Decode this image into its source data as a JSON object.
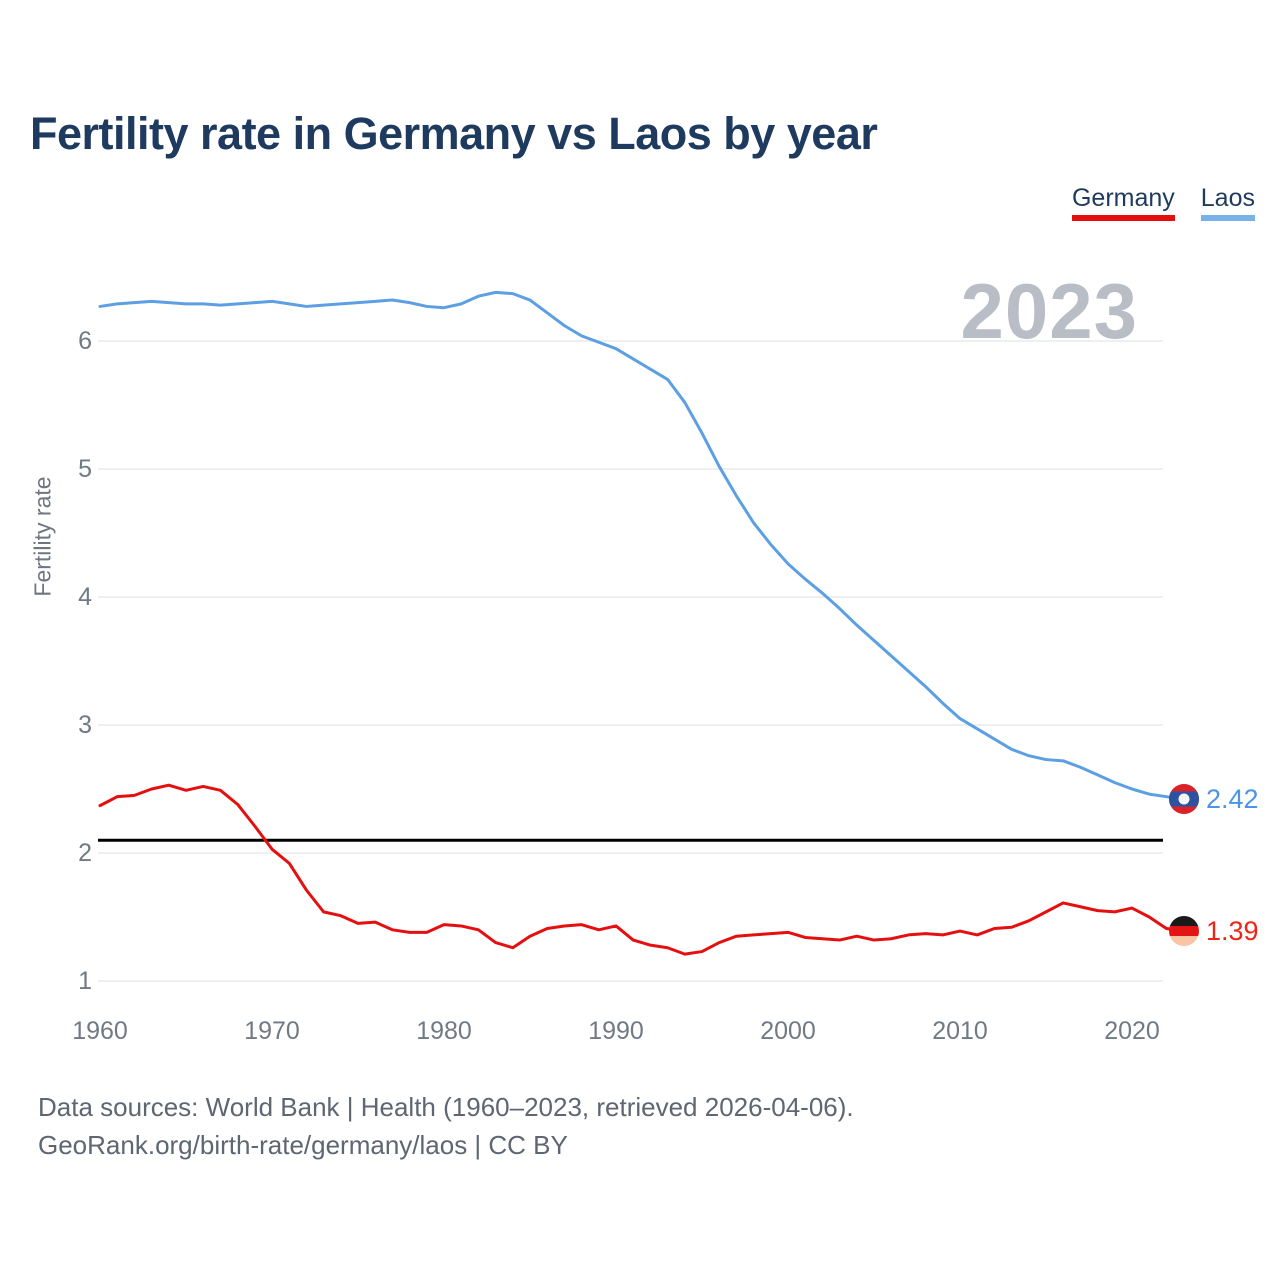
{
  "title": "Fertility rate in Germany vs Laos by year",
  "watermark": "2023",
  "legend": {
    "items": [
      {
        "label": "Germany",
        "color": "#e60f0f"
      },
      {
        "label": "Laos",
        "color": "#79b2e9"
      }
    ]
  },
  "y_axis": {
    "label": "Fertility rate",
    "ticks": [
      "1",
      "2",
      "3",
      "4",
      "5",
      "6"
    ]
  },
  "x_axis": {
    "ticks": [
      "1960",
      "1970",
      "1980",
      "1990",
      "2000",
      "2010",
      "2020"
    ]
  },
  "reference_line": {
    "value": 2.1,
    "color": "#000000"
  },
  "end_labels": {
    "laos": {
      "value": "2.42",
      "color": "#4b94e8"
    },
    "germany": {
      "value": "1.39",
      "color": "#ee2516"
    }
  },
  "flags": {
    "laos": {
      "red": "#d8232a",
      "blue": "#2d53a0",
      "white": "#f4f6f8"
    },
    "germany": {
      "black": "#1a1a1a",
      "red": "#e31414",
      "gold": "#f9c5a5"
    }
  },
  "footer": {
    "line1": "Data sources: World Bank | Health (1960–2023, retrieved 2026-04-06).",
    "line2": "GeoRank.org/birth-rate/germany/laos | CC BY"
  },
  "chart_data": {
    "type": "line",
    "title": "Fertility rate in Germany vs Laos by year",
    "xlabel": "",
    "ylabel": "Fertility rate",
    "xlim": [
      1960,
      2023
    ],
    "ylim": [
      1,
      6.5
    ],
    "grid": "horizontal",
    "legend_position": "top-right",
    "x": [
      1960,
      1961,
      1962,
      1963,
      1964,
      1965,
      1966,
      1967,
      1968,
      1969,
      1970,
      1971,
      1972,
      1973,
      1974,
      1975,
      1976,
      1977,
      1978,
      1979,
      1980,
      1981,
      1982,
      1983,
      1984,
      1985,
      1986,
      1987,
      1988,
      1989,
      1990,
      1991,
      1992,
      1993,
      1994,
      1995,
      1996,
      1997,
      1998,
      1999,
      2000,
      2001,
      2002,
      2003,
      2004,
      2005,
      2006,
      2007,
      2008,
      2009,
      2010,
      2011,
      2012,
      2013,
      2014,
      2015,
      2016,
      2017,
      2018,
      2019,
      2020,
      2021,
      2022,
      2023
    ],
    "series": [
      {
        "name": "Germany",
        "color": "#e60f0f",
        "values": [
          2.37,
          2.44,
          2.45,
          2.5,
          2.53,
          2.49,
          2.52,
          2.49,
          2.38,
          2.21,
          2.03,
          1.92,
          1.71,
          1.54,
          1.51,
          1.45,
          1.46,
          1.4,
          1.38,
          1.38,
          1.44,
          1.43,
          1.4,
          1.3,
          1.26,
          1.35,
          1.41,
          1.43,
          1.44,
          1.4,
          1.43,
          1.32,
          1.28,
          1.26,
          1.21,
          1.23,
          1.3,
          1.35,
          1.36,
          1.37,
          1.38,
          1.34,
          1.33,
          1.32,
          1.35,
          1.32,
          1.33,
          1.36,
          1.37,
          1.36,
          1.39,
          1.36,
          1.41,
          1.42,
          1.47,
          1.54,
          1.61,
          1.58,
          1.55,
          1.54,
          1.57,
          1.5,
          1.41,
          1.39
        ]
      },
      {
        "name": "Laos",
        "color": "#5d9fe3",
        "values": [
          6.27,
          6.29,
          6.3,
          6.31,
          6.3,
          6.29,
          6.29,
          6.28,
          6.29,
          6.3,
          6.31,
          6.29,
          6.27,
          6.28,
          6.29,
          6.3,
          6.31,
          6.32,
          6.3,
          6.27,
          6.26,
          6.29,
          6.35,
          6.38,
          6.37,
          6.32,
          6.22,
          6.12,
          6.04,
          5.99,
          5.94,
          5.86,
          5.78,
          5.7,
          5.52,
          5.28,
          5.02,
          4.79,
          4.58,
          4.41,
          4.26,
          4.14,
          4.03,
          3.91,
          3.78,
          3.66,
          3.54,
          3.42,
          3.3,
          3.17,
          3.05,
          2.97,
          2.89,
          2.81,
          2.76,
          2.73,
          2.72,
          2.67,
          2.61,
          2.55,
          2.5,
          2.46,
          2.44,
          2.42
        ]
      }
    ],
    "annotations": {
      "replacement_level_line": 2.1,
      "current_year_watermark": "2023",
      "germany_last_value": 1.39,
      "laos_last_value": 2.42
    }
  }
}
